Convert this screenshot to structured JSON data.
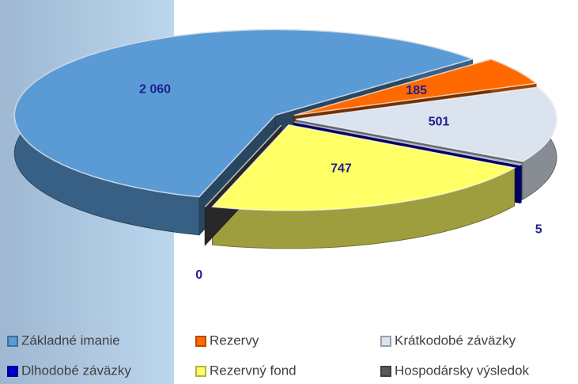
{
  "chart_data": {
    "type": "pie",
    "categories": [
      "Základné imanie",
      "Rezervy",
      "Krátkodobé záväzky",
      "Dlhodobé záväzky",
      "Rezervný fond",
      "Hospodársky výsledok"
    ],
    "values": [
      2060,
      185,
      501,
      5,
      747,
      0
    ],
    "value_labels": [
      "2 060",
      "185",
      "501",
      "5",
      "747",
      "0"
    ],
    "colors": [
      "#5b9bd5",
      "#ff6a00",
      "#dbe3ef",
      "#0000cc",
      "#ffff66",
      "#595959"
    ],
    "legend": "bottom"
  }
}
